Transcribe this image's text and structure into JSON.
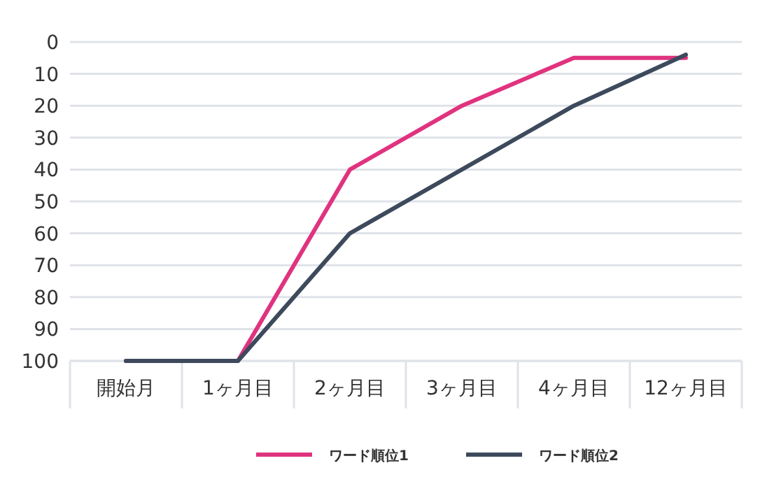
{
  "chart_data": {
    "type": "line",
    "categories": [
      "開始月",
      "1ヶ月目",
      "2ヶ月目",
      "3ヶ月目",
      "4ヶ月目",
      "12ヶ月目"
    ],
    "series": [
      {
        "name": "ワード順位1",
        "color": "#e0337f",
        "values": [
          100,
          100,
          40,
          20,
          5,
          5
        ]
      },
      {
        "name": "ワード順位2",
        "color": "#3d4a5c",
        "values": [
          100,
          100,
          60,
          40,
          20,
          4
        ]
      }
    ],
    "ylim": [
      100,
      0
    ],
    "yticks": [
      0,
      10,
      20,
      30,
      40,
      50,
      60,
      70,
      80,
      90,
      100
    ],
    "grid": "y",
    "legend": "bottom",
    "marker": "none",
    "line_style": "solid"
  }
}
